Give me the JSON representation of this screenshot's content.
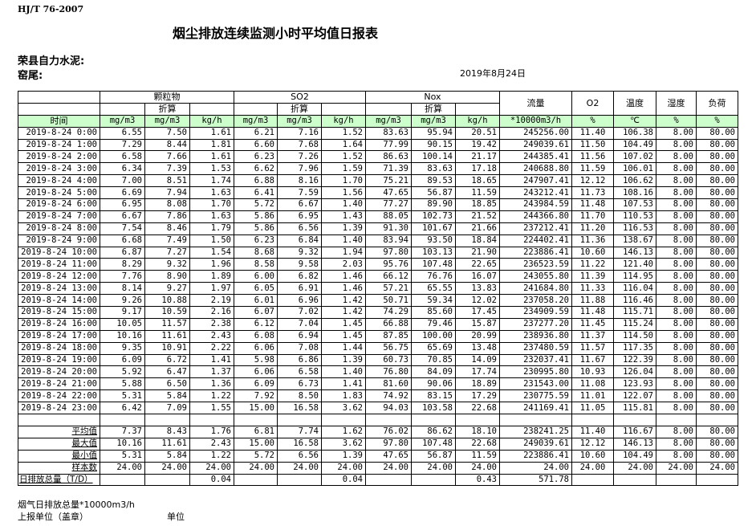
{
  "header": {
    "standard": "HJ/T  76-2007",
    "title": "烟尘排放连续监测小时平均值日报表",
    "company": "荣县自力水泥:",
    "kiln": "窑尾:",
    "date": "2019年8月24日"
  },
  "table": {
    "groups": [
      "颗粒物",
      "SO2",
      "Nox"
    ],
    "converted_label": "折算",
    "flow_label": "流量",
    "o2_label": "O2",
    "temp_label": "温度",
    "humidity_label": "湿度",
    "load_label": "负荷",
    "time_label": "时间",
    "units": [
      "mg/m3",
      "mg/m3",
      "kg/h",
      "mg/m3",
      "mg/m3",
      "kg/h",
      "mg/m3",
      "mg/m3",
      "kg/h",
      "*10000m3/h",
      "%",
      "℃",
      "%",
      "%"
    ],
    "rows": [
      [
        "2019-8-24 0:00",
        "6.55",
        "7.50",
        "1.61",
        "6.21",
        "7.16",
        "1.52",
        "83.63",
        "95.94",
        "20.51",
        "245256.00",
        "11.40",
        "106.38",
        "8.00",
        "80.00"
      ],
      [
        "2019-8-24 1:00",
        "7.29",
        "8.44",
        "1.81",
        "6.60",
        "7.68",
        "1.64",
        "77.99",
        "90.15",
        "19.42",
        "249039.61",
        "11.50",
        "104.49",
        "8.00",
        "80.00"
      ],
      [
        "2019-8-24 2:00",
        "6.58",
        "7.66",
        "1.61",
        "6.23",
        "7.26",
        "1.52",
        "86.63",
        "100.14",
        "21.17",
        "244385.41",
        "11.56",
        "107.02",
        "8.00",
        "80.00"
      ],
      [
        "2019-8-24 3:00",
        "6.34",
        "7.39",
        "1.53",
        "6.62",
        "7.96",
        "1.59",
        "71.39",
        "83.63",
        "17.18",
        "240688.80",
        "11.59",
        "106.01",
        "8.00",
        "80.00"
      ],
      [
        "2019-8-24 4:00",
        "7.00",
        "8.51",
        "1.74",
        "6.88",
        "8.16",
        "1.70",
        "75.21",
        "89.53",
        "18.65",
        "247907.41",
        "12.12",
        "106.62",
        "8.00",
        "80.00"
      ],
      [
        "2019-8-24 5:00",
        "6.69",
        "7.94",
        "1.63",
        "6.41",
        "7.59",
        "1.56",
        "47.65",
        "56.87",
        "11.59",
        "243212.41",
        "11.73",
        "108.16",
        "8.00",
        "80.00"
      ],
      [
        "2019-8-24 6:00",
        "6.95",
        "8.08",
        "1.70",
        "5.72",
        "6.67",
        "1.40",
        "77.27",
        "89.90",
        "18.85",
        "243984.59",
        "11.48",
        "107.53",
        "8.00",
        "80.00"
      ],
      [
        "2019-8-24 7:00",
        "6.67",
        "7.86",
        "1.63",
        "5.86",
        "6.95",
        "1.43",
        "88.05",
        "102.73",
        "21.52",
        "244366.80",
        "11.70",
        "110.53",
        "8.00",
        "80.00"
      ],
      [
        "2019-8-24 8:00",
        "7.54",
        "8.46",
        "1.79",
        "5.86",
        "6.56",
        "1.39",
        "91.30",
        "101.67",
        "21.66",
        "237212.41",
        "11.20",
        "116.53",
        "8.00",
        "80.00"
      ],
      [
        "2019-8-24 9:00",
        "6.68",
        "7.49",
        "1.50",
        "6.23",
        "6.84",
        "1.40",
        "83.94",
        "93.50",
        "18.84",
        "224402.41",
        "11.36",
        "138.67",
        "8.00",
        "80.00"
      ],
      [
        "2019-8-24 10:00",
        "6.87",
        "7.27",
        "1.54",
        "8.68",
        "9.32",
        "1.94",
        "97.80",
        "103.13",
        "21.90",
        "223886.41",
        "10.60",
        "146.13",
        "8.00",
        "80.00"
      ],
      [
        "2019-8-24 11:00",
        "8.29",
        "9.32",
        "1.96",
        "8.58",
        "9.58",
        "2.03",
        "95.76",
        "107.48",
        "22.65",
        "236523.59",
        "11.22",
        "121.40",
        "8.00",
        "80.00"
      ],
      [
        "2019-8-24 12:00",
        "7.76",
        "8.90",
        "1.89",
        "6.00",
        "6.82",
        "1.46",
        "66.12",
        "76.76",
        "16.07",
        "243055.80",
        "11.39",
        "114.95",
        "8.00",
        "80.00"
      ],
      [
        "2019-8-24 13:00",
        "8.14",
        "9.27",
        "1.97",
        "6.05",
        "6.91",
        "1.46",
        "57.21",
        "65.55",
        "13.83",
        "241684.80",
        "11.33",
        "116.04",
        "8.00",
        "80.00"
      ],
      [
        "2019-8-24 14:00",
        "9.26",
        "10.88",
        "2.19",
        "6.01",
        "6.96",
        "1.42",
        "50.71",
        "59.34",
        "12.02",
        "237058.20",
        "11.88",
        "116.46",
        "8.00",
        "80.00"
      ],
      [
        "2019-8-24 15:00",
        "9.17",
        "10.59",
        "2.16",
        "6.07",
        "7.02",
        "1.42",
        "74.29",
        "85.60",
        "17.45",
        "234909.59",
        "11.48",
        "115.71",
        "8.00",
        "80.00"
      ],
      [
        "2019-8-24 16:00",
        "10.05",
        "11.57",
        "2.38",
        "6.12",
        "7.04",
        "1.45",
        "66.88",
        "79.46",
        "15.87",
        "237277.20",
        "11.45",
        "115.24",
        "8.00",
        "80.00"
      ],
      [
        "2019-8-24 17:00",
        "10.16",
        "11.61",
        "2.43",
        "6.08",
        "6.94",
        "1.45",
        "87.85",
        "100.00",
        "20.99",
        "238936.80",
        "11.37",
        "114.50",
        "8.00",
        "80.00"
      ],
      [
        "2019-8-24 18:00",
        "9.35",
        "10.91",
        "2.22",
        "6.06",
        "7.08",
        "1.44",
        "56.75",
        "65.69",
        "13.48",
        "237480.59",
        "11.57",
        "117.35",
        "8.00",
        "80.00"
      ],
      [
        "2019-8-24 19:00",
        "6.09",
        "6.72",
        "1.41",
        "5.98",
        "6.86",
        "1.39",
        "60.73",
        "70.85",
        "14.09",
        "232037.41",
        "11.67",
        "122.39",
        "8.00",
        "80.00"
      ],
      [
        "2019-8-24 20:00",
        "5.92",
        "6.47",
        "1.37",
        "6.06",
        "6.58",
        "1.40",
        "76.80",
        "84.09",
        "17.74",
        "230995.80",
        "10.93",
        "126.04",
        "8.00",
        "80.00"
      ],
      [
        "2019-8-24 21:00",
        "5.88",
        "6.50",
        "1.36",
        "6.09",
        "6.73",
        "1.41",
        "81.60",
        "90.06",
        "18.89",
        "231543.00",
        "11.08",
        "123.93",
        "8.00",
        "80.00"
      ],
      [
        "2019-8-24 22:00",
        "5.31",
        "5.84",
        "1.22",
        "7.92",
        "8.50",
        "1.83",
        "74.92",
        "83.15",
        "17.29",
        "230775.59",
        "11.01",
        "122.07",
        "8.00",
        "80.00"
      ],
      [
        "2019-8-24 23:00",
        "6.42",
        "7.09",
        "1.55",
        "15.00",
        "16.58",
        "3.62",
        "94.03",
        "103.58",
        "22.68",
        "241169.41",
        "11.05",
        "115.81",
        "8.00",
        "80.00"
      ]
    ],
    "stats": [
      [
        "平均值",
        "7.37",
        "8.43",
        "1.76",
        "6.81",
        "7.74",
        "1.62",
        "76.02",
        "86.62",
        "18.10",
        "238241.25",
        "11.40",
        "116.67",
        "8.00",
        "80.00"
      ],
      [
        "最大值",
        "10.16",
        "11.61",
        "2.43",
        "15.00",
        "16.58",
        "3.62",
        "97.80",
        "107.48",
        "22.68",
        "249039.61",
        "12.12",
        "146.13",
        "8.00",
        "80.00"
      ],
      [
        "最小值",
        "5.31",
        "5.84",
        "1.22",
        "5.72",
        "6.56",
        "1.39",
        "47.65",
        "56.87",
        "11.59",
        "223886.41",
        "10.60",
        "104.49",
        "8.00",
        "80.00"
      ],
      [
        "样本数",
        "24.00",
        "24.00",
        "24.00",
        "24.00",
        "24.00",
        "24.00",
        "24.00",
        "24.00",
        "24.00",
        "24.00",
        "24.00",
        "24.00",
        "24.00",
        "24.00"
      ],
      [
        "日排放总量（T/D）",
        "",
        "",
        "0.04",
        "",
        "",
        "0.04",
        "",
        "",
        "0.43",
        "571.78",
        "",
        "",
        "",
        ""
      ]
    ]
  },
  "footer": {
    "flue_total": "烟气日排放总量*10000m3/h",
    "reporter": "上报单位（盖章）",
    "unit": "单位"
  }
}
